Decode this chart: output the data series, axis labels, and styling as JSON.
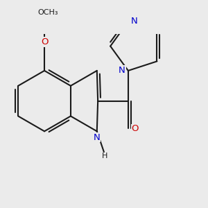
{
  "background_color": "#ebebeb",
  "bond_color": "#1a1a1a",
  "n_color": "#0000cc",
  "o_color": "#cc0000",
  "bond_lw": 1.5,
  "font_size": 9.5,
  "figure_size": [
    3.0,
    3.0
  ],
  "dpi": 100,
  "xlim": [
    -2.6,
    4.2
  ],
  "ylim": [
    -2.2,
    2.4
  ]
}
